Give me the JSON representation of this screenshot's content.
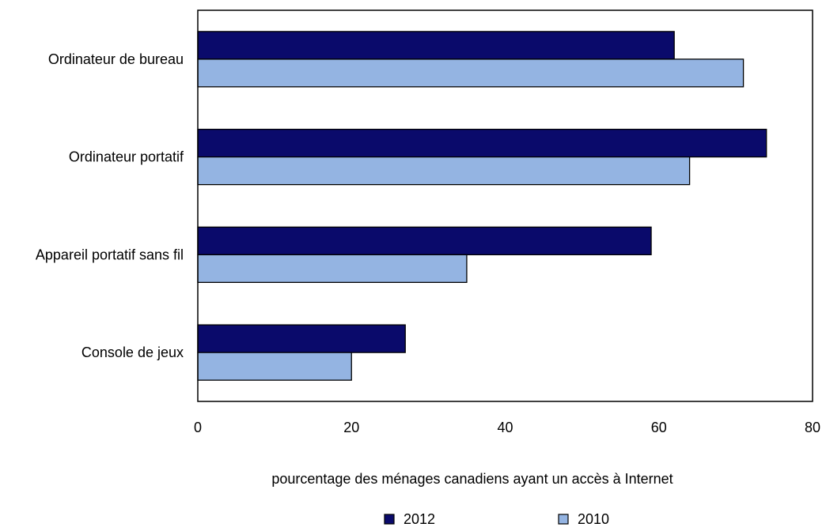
{
  "chart_data": {
    "type": "bar",
    "orientation": "horizontal",
    "categories": [
      "Ordinateur de bureau",
      "Ordinateur portatif",
      "Appareil portatif sans fil",
      "Console de jeux"
    ],
    "series": [
      {
        "name": "2012",
        "values": [
          62,
          74,
          59,
          27
        ],
        "color": "#0a0a6b"
      },
      {
        "name": "2010",
        "values": [
          71,
          64,
          35,
          20
        ],
        "color": "#94b4e2"
      }
    ],
    "title": "",
    "xlabel": "pourcentage des ménages canadiens ayant un accès à Internet",
    "ylabel": "",
    "xlim": [
      0,
      80
    ],
    "xticks": [
      "0",
      "20",
      "40",
      "60",
      "80"
    ],
    "grid": false,
    "legend_position": "bottom"
  }
}
